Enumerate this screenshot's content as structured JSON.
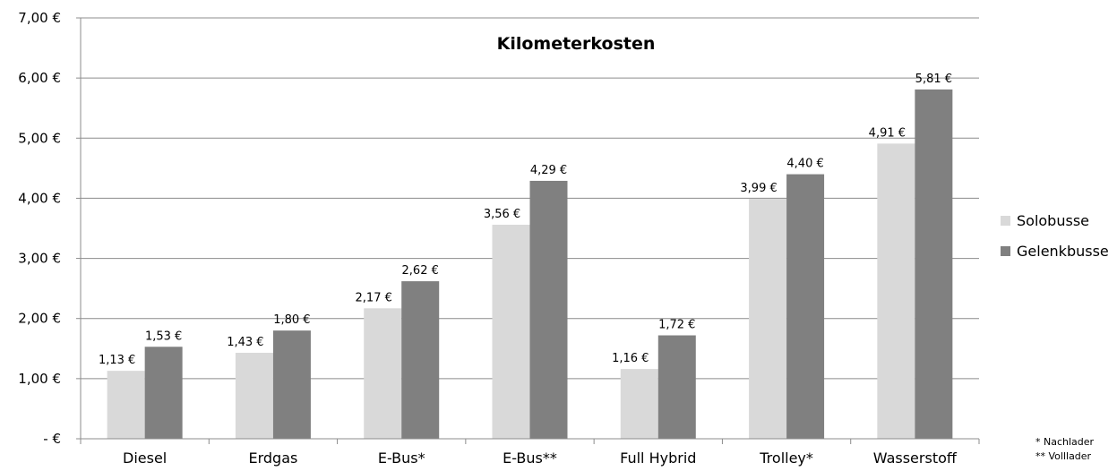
{
  "chart_data": {
    "type": "bar",
    "title": "Kilometerkosten",
    "categories": [
      "Diesel",
      "Erdgas",
      "E-Bus*",
      "E-Bus**",
      "Full Hybrid",
      "Trolley*",
      "Wasserstoff"
    ],
    "series": [
      {
        "name": "Solobusse",
        "color": "#d9d9d9",
        "values": [
          1.13,
          1.43,
          2.17,
          3.56,
          1.16,
          3.99,
          4.91
        ],
        "labels": [
          "1,13 €",
          "1,43 €",
          "2,17 €",
          "3,56 €",
          "1,16 €",
          "3,99 €",
          "4,91 €"
        ]
      },
      {
        "name": "Gelenkbusse",
        "color": "#808080",
        "values": [
          1.53,
          1.8,
          2.62,
          4.29,
          1.72,
          4.4,
          5.81
        ],
        "labels": [
          "1,53 €",
          "1,80 €",
          "2,62 €",
          "4,29 €",
          "1,72 €",
          "4,40 €",
          "5,81 €"
        ]
      }
    ],
    "y_ticks": [
      {
        "value": 0,
        "label": "-  €"
      },
      {
        "value": 1,
        "label": "1,00 €"
      },
      {
        "value": 2,
        "label": "2,00 €"
      },
      {
        "value": 3,
        "label": "3,00 €"
      },
      {
        "value": 4,
        "label": "4,00 €"
      },
      {
        "value": 5,
        "label": "5,00 €"
      },
      {
        "value": 6,
        "label": "6,00 €"
      },
      {
        "value": 7,
        "label": "7,00 €"
      }
    ],
    "ylim": [
      0,
      7
    ],
    "grid": true,
    "legend_position": "right",
    "footnotes": [
      "*  Nachlader",
      "** Volllader"
    ]
  }
}
